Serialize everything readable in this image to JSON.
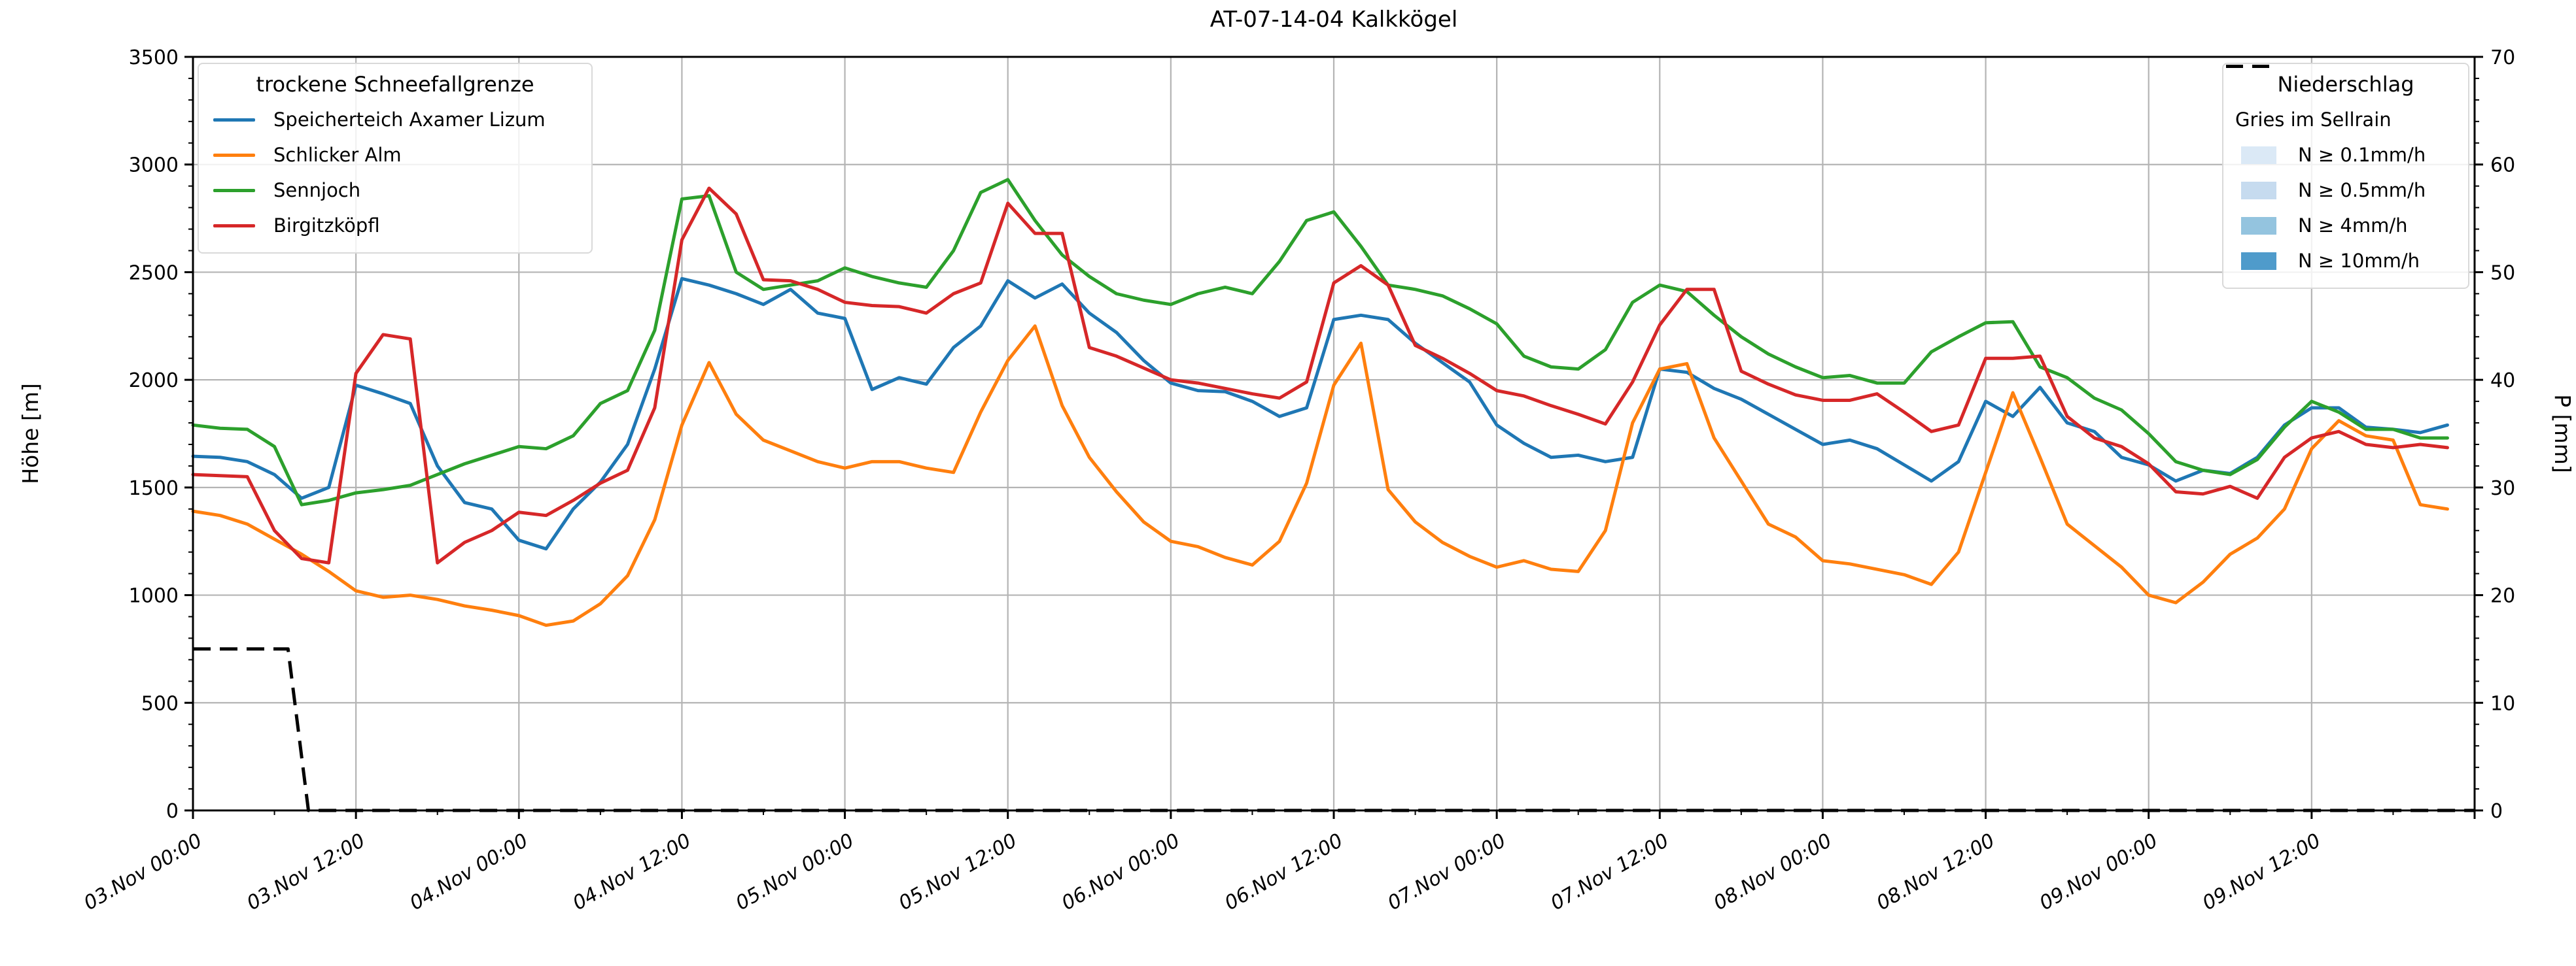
{
  "title": "AT-07-14-04 Kalkkögel",
  "axes": {
    "y_left": {
      "label": "Höhe [m]",
      "min": 0,
      "max": 3500,
      "major_step": 500,
      "minor_step": 100,
      "tick_labels": [
        "0",
        "500",
        "1000",
        "1500",
        "2000",
        "2500",
        "3000",
        "3500"
      ]
    },
    "y_right": {
      "label": "P [mm]",
      "min": 0,
      "max": 70,
      "major_step": 10,
      "minor_step": 2,
      "tick_labels": [
        "0",
        "10",
        "20",
        "30",
        "40",
        "50",
        "60",
        "70"
      ]
    },
    "x": {
      "min_hours": 0,
      "max_hours": 168,
      "major_step_hours": 12,
      "minor_step_hours": 6,
      "tick_labels": [
        "03.Nov 00:00",
        "03.Nov 12:00",
        "04.Nov 00:00",
        "04.Nov 12:00",
        "05.Nov 00:00",
        "05.Nov 12:00",
        "06.Nov 00:00",
        "06.Nov 12:00",
        "07.Nov 00:00",
        "07.Nov 12:00",
        "08.Nov 00:00",
        "08.Nov 12:00",
        "09.Nov 00:00",
        "09.Nov 12:00"
      ]
    }
  },
  "legend_snowline": {
    "title": "trockene Schneefallgrenze",
    "items": [
      {
        "label": "Speicherteich Axamer Lizum",
        "color": "#1f77b4"
      },
      {
        "label": "Schlicker Alm",
        "color": "#ff7f0e"
      },
      {
        "label": "Sennjoch",
        "color": "#2ca02c"
      },
      {
        "label": "Birgitzköpfl",
        "color": "#d62728"
      }
    ]
  },
  "legend_precip": {
    "title": "Niederschlag",
    "line_item": {
      "label": "Gries im Sellrain",
      "color": "#000000",
      "dashed": true
    },
    "band_items": [
      {
        "label": "N ≥ 0.1mm/h",
        "color": "#dbe9f6"
      },
      {
        "label": "N ≥ 0.5mm/h",
        "color": "#c6dbef"
      },
      {
        "label": "N ≥ 4mm/h",
        "color": "#94c4df"
      },
      {
        "label": "N ≥ 10mm/h",
        "color": "#4f9bcb"
      }
    ]
  },
  "chart_data": {
    "type": "line",
    "title": "AT-07-14-04 Kalkkögel",
    "xlabel": "",
    "ylabel_left": "Höhe [m]",
    "ylabel_right": "P [mm]",
    "ylim_left": [
      0,
      3500
    ],
    "ylim_right": [
      0,
      70
    ],
    "grid": true,
    "x_unit": "hours since 03.Nov 00:00",
    "hours": [
      0,
      2,
      4,
      6,
      8,
      10,
      12,
      14,
      16,
      18,
      20,
      22,
      24,
      26,
      28,
      30,
      32,
      34,
      36,
      38,
      40,
      42,
      44,
      46,
      48,
      50,
      52,
      54,
      56,
      58,
      60,
      62,
      64,
      66,
      68,
      70,
      72,
      74,
      76,
      78,
      80,
      82,
      84,
      86,
      88,
      90,
      92,
      94,
      96,
      98,
      100,
      102,
      104,
      106,
      108,
      110,
      112,
      114,
      116,
      118,
      120,
      122,
      124,
      126,
      128,
      130,
      132,
      134,
      136,
      138,
      140,
      142,
      144,
      146,
      148,
      150,
      152,
      154,
      156,
      158,
      160,
      162,
      164,
      166
    ],
    "series": [
      {
        "name": "Speicherteich Axamer Lizum",
        "color": "#1f77b4",
        "values": [
          1645,
          1640,
          1620,
          1560,
          1450,
          1500,
          1975,
          1935,
          1890,
          1600,
          1430,
          1400,
          1255,
          1215,
          1400,
          1525,
          1700,
          2050,
          2470,
          2440,
          2400,
          2350,
          2420,
          2310,
          2285,
          1955,
          2010,
          1980,
          2150,
          2250,
          2460,
          2380,
          2445,
          2310,
          2220,
          2090,
          1985,
          1950,
          1945,
          1900,
          1830,
          1870,
          2280,
          2300,
          2280,
          2170,
          2080,
          1990,
          1790,
          1705,
          1640,
          1650,
          1620,
          1640,
          2050,
          2035,
          1960,
          1910,
          1840,
          1770,
          1700,
          1720,
          1680,
          1605,
          1530,
          1620,
          1900,
          1830,
          1965,
          1800,
          1760,
          1640,
          1605,
          1530,
          1580,
          1565,
          1640,
          1790,
          1870,
          1870,
          1780,
          1770,
          1755,
          1790
        ]
      },
      {
        "name": "Schlicker Alm",
        "color": "#ff7f0e",
        "values": [
          1390,
          1370,
          1330,
          1260,
          1190,
          1110,
          1020,
          990,
          1000,
          980,
          950,
          930,
          905,
          860,
          880,
          960,
          1090,
          1350,
          1790,
          2080,
          1840,
          1720,
          1670,
          1620,
          1590,
          1620,
          1620,
          1590,
          1570,
          1850,
          2090,
          2250,
          1880,
          1640,
          1480,
          1340,
          1250,
          1225,
          1175,
          1140,
          1250,
          1520,
          1975,
          2170,
          1490,
          1340,
          1245,
          1180,
          1130,
          1160,
          1120,
          1110,
          1300,
          1800,
          2050,
          2075,
          1730,
          1530,
          1330,
          1270,
          1160,
          1145,
          1120,
          1095,
          1050,
          1200,
          1570,
          1940,
          1640,
          1330,
          1230,
          1130,
          1000,
          965,
          1060,
          1190,
          1265,
          1400,
          1680,
          1810,
          1740,
          1720,
          1420,
          1400
        ]
      },
      {
        "name": "Sennjoch",
        "color": "#2ca02c",
        "values": [
          1790,
          1775,
          1770,
          1690,
          1420,
          1440,
          1475,
          1490,
          1510,
          1560,
          1610,
          1650,
          1690,
          1680,
          1740,
          1890,
          1950,
          2230,
          2840,
          2855,
          2500,
          2420,
          2440,
          2460,
          2520,
          2480,
          2450,
          2430,
          2600,
          2870,
          2930,
          2740,
          2580,
          2480,
          2400,
          2370,
          2350,
          2400,
          2430,
          2400,
          2550,
          2740,
          2780,
          2620,
          2440,
          2420,
          2390,
          2330,
          2260,
          2110,
          2060,
          2050,
          2140,
          2360,
          2440,
          2410,
          2300,
          2200,
          2120,
          2060,
          2010,
          2020,
          1985,
          1985,
          2130,
          2200,
          2265,
          2270,
          2060,
          2010,
          1915,
          1860,
          1750,
          1620,
          1580,
          1560,
          1630,
          1780,
          1900,
          1850,
          1770,
          1770,
          1730,
          1730
        ]
      },
      {
        "name": "Birgitzköpfl",
        "color": "#d62728",
        "values": [
          1560,
          1555,
          1550,
          1300,
          1170,
          1150,
          2030,
          2210,
          2190,
          1150,
          1245,
          1300,
          1385,
          1370,
          1440,
          1520,
          1580,
          1870,
          2650,
          2890,
          2770,
          2465,
          2460,
          2420,
          2360,
          2345,
          2340,
          2310,
          2400,
          2450,
          2820,
          2680,
          2680,
          2150,
          2110,
          2055,
          2000,
          1985,
          1960,
          1935,
          1915,
          1990,
          2450,
          2530,
          2440,
          2160,
          2100,
          2030,
          1950,
          1925,
          1880,
          1840,
          1795,
          1990,
          2255,
          2420,
          2420,
          2040,
          1980,
          1930,
          1905,
          1905,
          1935,
          1850,
          1760,
          1790,
          2100,
          2100,
          2110,
          1830,
          1730,
          1690,
          1610,
          1480,
          1470,
          1505,
          1450,
          1640,
          1730,
          1760,
          1700,
          1685,
          1700,
          1685
        ]
      }
    ],
    "precip_line": {
      "name": "Gries im Sellrain",
      "axis": "right",
      "unit": "mm",
      "color": "#000000",
      "dashed": true,
      "points": [
        [
          0,
          15
        ],
        [
          7,
          15
        ],
        [
          8.5,
          0
        ],
        [
          168,
          0
        ]
      ]
    }
  },
  "colors": {
    "grid": "#b4b4b4",
    "spine": "#000000",
    "background": "#ffffff"
  }
}
